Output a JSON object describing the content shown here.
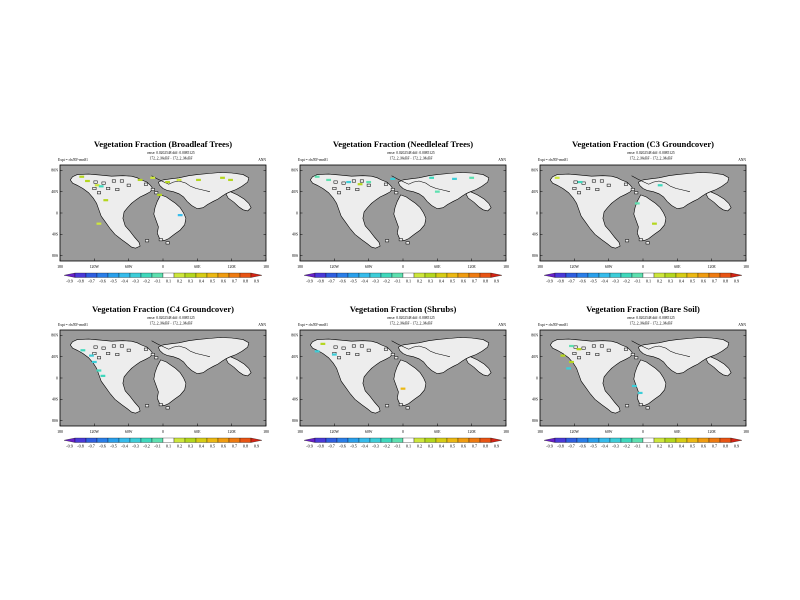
{
  "figure": {
    "panels": [
      {
        "title": "Vegetation Fraction (Broadleaf Trees)",
        "expt": "Expt = rfs/RV-rms81",
        "rmse": "rmse: 0.0202548 diff: 0.0085125",
        "pair": "172_2_MeBF - 172_2_MeBF",
        "season": "ANN"
      },
      {
        "title": "Vegetation Fraction (Needleleaf Trees)",
        "expt": "Expt = rfs/RV-rms81",
        "rmse": "rmse: 0.0202548 diff: 0.0085125",
        "pair": "172_2_MeBF - 172_2_MeBF",
        "season": "ANN"
      },
      {
        "title": "Vegetation Fraction (C3 Groundcover)",
        "expt": "Expt = rfs/RV-rms81",
        "rmse": "rmse: 0.0202548 diff: 0.0085125",
        "pair": "172_2_MeBF - 172_2_MeBF",
        "season": "ANN"
      },
      {
        "title": "Vegetation Fraction (C4 Groundcover)",
        "expt": "Expt = rfs/RV-rms81",
        "rmse": "rmse: 0.0202548 diff: 0.0085125",
        "pair": "172_2_MeBF - 172_2_MeBF",
        "season": "ANN"
      },
      {
        "title": "Vegetation Fraction (Shrubs)",
        "expt": "Expt = rfs/RV-rms81",
        "rmse": "rmse: 0.0202548 diff: 0.0085125",
        "pair": "172_2_MeBF - 172_2_MeBF",
        "season": "ANN"
      },
      {
        "title": "Vegetation Fraction (Bare Soil)",
        "expt": "Expt = rfs/RV-rms81",
        "rmse": "rmse: 0.0202548 diff: 0.0085125",
        "pair": "172_2_MeBF - 172_2_MeBF",
        "season": "ANN"
      }
    ]
  },
  "chart_data": [
    {
      "type": "heatmap",
      "title": "Vegetation Fraction (Broadleaf Trees)",
      "season": "ANN",
      "x_ticks": [
        "180",
        "120W",
        "60W",
        "0",
        "60E",
        "120E",
        "180"
      ],
      "y_ticks": [
        "80N",
        "40N",
        "0",
        "40S",
        "80S"
      ],
      "colorbar_labels": [
        "-0.9",
        "-0.8",
        "-0.7",
        "-0.6",
        "-0.5",
        "-0.4",
        "-0.3",
        "-0.2",
        "-0.1",
        "0.1",
        "0.2",
        "0.3",
        "0.4",
        "0.5",
        "0.6",
        "0.7",
        "0.8",
        "0.9"
      ],
      "colorbar_colors": [
        "#6a20c8",
        "#4a3ad8",
        "#2e5ee0",
        "#2a7ee8",
        "#2aa0ec",
        "#36bcec",
        "#3ccdd8",
        "#3fd8bc",
        "#5ee0b0",
        "#ffffff",
        "#cde63c",
        "#b4d61e",
        "#d6cc14",
        "#ecb812",
        "#f09c10",
        "#ee7a10",
        "#e85414",
        "#d42414"
      ],
      "anomalies": [
        {
          "lon": -142,
          "lat": 68,
          "value": 0.3
        },
        {
          "lon": -132,
          "lat": 60,
          "value": 0.3
        },
        {
          "lon": -115,
          "lat": 52,
          "value": 0.2
        },
        {
          "lon": -100,
          "lat": 24,
          "value": 0.3
        },
        {
          "lon": -40,
          "lat": 62,
          "value": 0.3
        },
        {
          "lon": -18,
          "lat": 66,
          "value": 0.2
        },
        {
          "lon": 8,
          "lat": 58,
          "value": 0.3
        },
        {
          "lon": 28,
          "lat": 62,
          "value": 0.2
        },
        {
          "lon": 62,
          "lat": 62,
          "value": 0.3
        },
        {
          "lon": 104,
          "lat": 66,
          "value": 0.3
        },
        {
          "lon": 118,
          "lat": 62,
          "value": 0.3
        },
        {
          "lon": -6,
          "lat": 34,
          "value": 0.3
        },
        {
          "lon": -112,
          "lat": -20,
          "value": 0.2
        },
        {
          "lon": 30,
          "lat": -4,
          "value": -0.4
        },
        {
          "lon": -108,
          "lat": 50,
          "value": -0.2
        }
      ]
    },
    {
      "type": "heatmap",
      "title": "Vegetation Fraction (Needleleaf Trees)",
      "season": "ANN",
      "x_ticks": [
        "180",
        "120W",
        "60W",
        "0",
        "60E",
        "120E",
        "180"
      ],
      "y_ticks": [
        "80N",
        "40N",
        "0",
        "40S",
        "80S"
      ],
      "colorbar_labels": [
        "-0.9",
        "-0.8",
        "-0.7",
        "-0.6",
        "-0.5",
        "-0.4",
        "-0.3",
        "-0.2",
        "-0.1",
        "0.1",
        "0.2",
        "0.3",
        "0.4",
        "0.5",
        "0.6",
        "0.7",
        "0.8",
        "0.9"
      ],
      "colorbar_colors": [
        "#6a20c8",
        "#4a3ad8",
        "#2e5ee0",
        "#2a7ee8",
        "#2aa0ec",
        "#36bcec",
        "#3ccdd8",
        "#3fd8bc",
        "#5ee0b0",
        "#ffffff",
        "#cde63c",
        "#b4d61e",
        "#d6cc14",
        "#ecb812",
        "#f09c10",
        "#ee7a10",
        "#e85414",
        "#d42414"
      ],
      "anomalies": [
        {
          "lon": -150,
          "lat": 68,
          "value": -0.1
        },
        {
          "lon": -130,
          "lat": 62,
          "value": -0.1
        },
        {
          "lon": -95,
          "lat": 58,
          "value": -0.3
        },
        {
          "lon": -60,
          "lat": 58,
          "value": -0.1
        },
        {
          "lon": -18,
          "lat": 64,
          "value": -0.3
        },
        {
          "lon": 50,
          "lat": 66,
          "value": -0.2
        },
        {
          "lon": 90,
          "lat": 64,
          "value": -0.3
        },
        {
          "lon": 120,
          "lat": 66,
          "value": -0.1
        },
        {
          "lon": -75,
          "lat": 54,
          "value": 0.3
        },
        {
          "lon": 60,
          "lat": 40,
          "value": -0.1
        }
      ]
    },
    {
      "type": "heatmap",
      "title": "Vegetation Fraction (C3 Groundcover)",
      "season": "ANN",
      "x_ticks": [
        "180",
        "120W",
        "60W",
        "0",
        "60E",
        "120E",
        "180"
      ],
      "y_ticks": [
        "80N",
        "40N",
        "0",
        "40S",
        "80S"
      ],
      "colorbar_labels": [
        "-0.9",
        "-0.8",
        "-0.7",
        "-0.6",
        "-0.5",
        "-0.4",
        "-0.3",
        "-0.2",
        "-0.1",
        "0.1",
        "0.2",
        "0.3",
        "0.4",
        "0.5",
        "0.6",
        "0.7",
        "0.8",
        "0.9"
      ],
      "colorbar_colors": [
        "#6a20c8",
        "#4a3ad8",
        "#2e5ee0",
        "#2a7ee8",
        "#2aa0ec",
        "#36bcec",
        "#3ccdd8",
        "#3fd8bc",
        "#5ee0b0",
        "#ffffff",
        "#cde63c",
        "#b4d61e",
        "#d6cc14",
        "#ecb812",
        "#f09c10",
        "#ee7a10",
        "#e85414",
        "#d42414"
      ],
      "anomalies": [
        {
          "lon": -150,
          "lat": 66,
          "value": 0.2
        },
        {
          "lon": -110,
          "lat": 58,
          "value": -0.2
        },
        {
          "lon": 30,
          "lat": 52,
          "value": -0.2
        },
        {
          "lon": -10,
          "lat": 18,
          "value": -0.1
        },
        {
          "lon": 20,
          "lat": -20,
          "value": 0.3
        }
      ]
    },
    {
      "type": "heatmap",
      "title": "Vegetation Fraction (C4 Groundcover)",
      "season": "ANN",
      "x_ticks": [
        "180",
        "120W",
        "60W",
        "0",
        "60E",
        "120E",
        "180"
      ],
      "y_ticks": [
        "80N",
        "40N",
        "0",
        "40S",
        "80S"
      ],
      "colorbar_labels": [
        "-0.9",
        "-0.8",
        "-0.7",
        "-0.6",
        "-0.5",
        "-0.4",
        "-0.3",
        "-0.2",
        "-0.1",
        "0.1",
        "0.2",
        "0.3",
        "0.4",
        "0.5",
        "0.6",
        "0.7",
        "0.8",
        "0.9"
      ],
      "colorbar_colors": [
        "#6a20c8",
        "#4a3ad8",
        "#2e5ee0",
        "#2a7ee8",
        "#2aa0ec",
        "#36bcec",
        "#3ccdd8",
        "#3fd8bc",
        "#5ee0b0",
        "#ffffff",
        "#cde63c",
        "#b4d61e",
        "#d6cc14",
        "#ecb812",
        "#f09c10",
        "#ee7a10",
        "#e85414",
        "#d42414"
      ],
      "anomalies": [
        {
          "lon": -140,
          "lat": 52,
          "value": -0.2
        },
        {
          "lon": -125,
          "lat": 42,
          "value": -0.3
        },
        {
          "lon": -120,
          "lat": 30,
          "value": -0.3
        },
        {
          "lon": -112,
          "lat": 14,
          "value": -0.2
        },
        {
          "lon": -105,
          "lat": 4,
          "value": -0.2
        }
      ]
    },
    {
      "type": "heatmap",
      "title": "Vegetation Fraction (Shrubs)",
      "season": "ANN",
      "x_ticks": [
        "180",
        "120W",
        "60W",
        "0",
        "60E",
        "120E",
        "180"
      ],
      "y_ticks": [
        "80N",
        "40N",
        "0",
        "40S",
        "80S"
      ],
      "colorbar_labels": [
        "-0.9",
        "-0.8",
        "-0.7",
        "-0.6",
        "-0.5",
        "-0.4",
        "-0.3",
        "-0.2",
        "-0.1",
        "0.1",
        "0.2",
        "0.3",
        "0.4",
        "0.5",
        "0.6",
        "0.7",
        "0.8",
        "0.9"
      ],
      "colorbar_colors": [
        "#6a20c8",
        "#4a3ad8",
        "#2e5ee0",
        "#2a7ee8",
        "#2aa0ec",
        "#36bcec",
        "#3ccdd8",
        "#3fd8bc",
        "#5ee0b0",
        "#ffffff",
        "#cde63c",
        "#b4d61e",
        "#d6cc14",
        "#ecb812",
        "#f09c10",
        "#ee7a10",
        "#e85414",
        "#d42414"
      ],
      "anomalies": [
        {
          "lon": -140,
          "lat": 64,
          "value": 0.3
        },
        {
          "lon": -150,
          "lat": 50,
          "value": -0.3
        },
        {
          "lon": -120,
          "lat": 44,
          "value": -0.3
        },
        {
          "lon": 0,
          "lat": -20,
          "value": 0.5
        }
      ]
    },
    {
      "type": "heatmap",
      "title": "Vegetation Fraction (Bare Soil)",
      "season": "ANN",
      "x_ticks": [
        "180",
        "120W",
        "60W",
        "0",
        "60E",
        "120E",
        "180"
      ],
      "y_ticks": [
        "80N",
        "40N",
        "0",
        "40S",
        "80S"
      ],
      "colorbar_labels": [
        "-0.9",
        "-0.8",
        "-0.7",
        "-0.6",
        "-0.5",
        "-0.4",
        "-0.3",
        "-0.2",
        "-0.1",
        "0.1",
        "0.2",
        "0.3",
        "0.4",
        "0.5",
        "0.6",
        "0.7",
        "0.8",
        "0.9"
      ],
      "colorbar_colors": [
        "#6a20c8",
        "#4a3ad8",
        "#2e5ee0",
        "#2a7ee8",
        "#2aa0ec",
        "#36bcec",
        "#3ccdd8",
        "#3fd8bc",
        "#5ee0b0",
        "#ffffff",
        "#cde63c",
        "#b4d61e",
        "#d6cc14",
        "#ecb812",
        "#f09c10",
        "#ee7a10",
        "#e85414",
        "#d42414"
      ],
      "anomalies": [
        {
          "lon": -125,
          "lat": 60,
          "value": -0.1
        },
        {
          "lon": -112,
          "lat": 54,
          "value": 0.3
        },
        {
          "lon": -140,
          "lat": 42,
          "value": 0.3
        },
        {
          "lon": -125,
          "lat": 30,
          "value": 0.3
        },
        {
          "lon": -130,
          "lat": 18,
          "value": -0.3
        },
        {
          "lon": -15,
          "lat": -15,
          "value": -0.3
        },
        {
          "lon": -5,
          "lat": -28,
          "value": -0.3
        }
      ]
    }
  ]
}
